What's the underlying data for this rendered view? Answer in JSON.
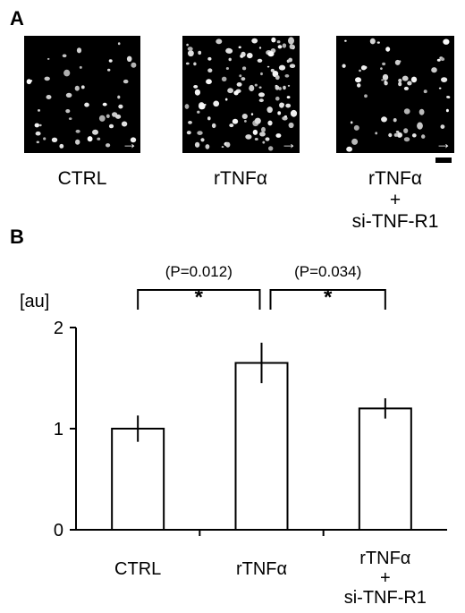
{
  "panel_a": {
    "letter": "A",
    "images": [
      {
        "caption_lines": [
          "CTRL"
        ],
        "cells": 45,
        "seed": 11
      },
      {
        "caption_lines": [
          "rTNFα"
        ],
        "cells": 110,
        "seed": 29
      },
      {
        "caption_lines": [
          "rTNFα",
          "+",
          "si-TNF-R1"
        ],
        "cells": 55,
        "seed": 47
      }
    ],
    "arrow_glyph": "→"
  },
  "panel_b": {
    "letter": "B",
    "unit_label": "[au]"
  },
  "chart_data": {
    "type": "bar",
    "categories": [
      "CTRL",
      "rTNFα",
      "rTNFα\n+\nsi-TNF-R1"
    ],
    "values": [
      1.0,
      1.65,
      1.2
    ],
    "errors": [
      0.13,
      0.2,
      0.1
    ],
    "ylabel": "[au]",
    "ylim": [
      0,
      2
    ],
    "yticks": [
      0,
      1,
      2
    ],
    "grid": false,
    "legend": "none",
    "significance": [
      {
        "from": 0,
        "to": 1,
        "star": "*",
        "p_label": "(P=0.012)"
      },
      {
        "from": 1,
        "to": 2,
        "star": "*",
        "p_label": "(P=0.034)"
      }
    ]
  }
}
